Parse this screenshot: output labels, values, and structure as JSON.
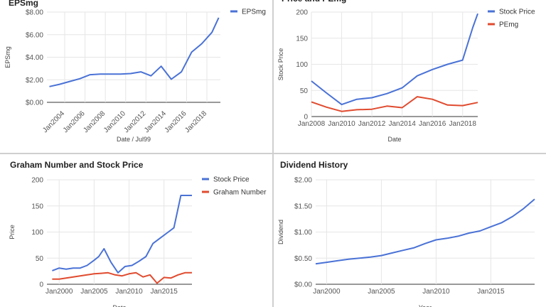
{
  "chart_data": [
    {
      "type": "line",
      "title": "EPSmg",
      "xlabel": "Date / Jul99",
      "ylabel": "EPSmg",
      "x_type": "date",
      "xlim": [
        "2002-04-01",
        "2019-05-01"
      ],
      "ylim": [
        0,
        8
      ],
      "y_ticks": [
        0,
        2,
        4,
        6,
        8
      ],
      "y_tick_labels": [
        "$0.00",
        "$2.00",
        "$4.00",
        "$6.00",
        "$8.00"
      ],
      "x_ticks": [
        "2004-01-01",
        "2006-01-01",
        "2008-01-01",
        "2010-01-01",
        "2012-01-01",
        "2014-01-01",
        "2016-01-01",
        "2018-01-01"
      ],
      "x_tick_labels": [
        "Jan2004",
        "Jan2006",
        "Jan2008",
        "Jan2010",
        "Jan2012",
        "Jan2014",
        "Jan2016",
        "Jan2018"
      ],
      "x_tick_rotate": true,
      "legend_position": "right",
      "series": [
        {
          "name": "EPSmg",
          "color": "#4a72d6",
          "x": [
            "2002-06-30",
            "2003-06-30",
            "2004-06-30",
            "2005-06-30",
            "2006-06-30",
            "2007-06-30",
            "2008-06-30",
            "2009-06-30",
            "2010-06-30",
            "2011-06-30",
            "2012-06-30",
            "2013-06-30",
            "2014-06-30",
            "2015-06-30",
            "2016-06-30",
            "2017-06-30",
            "2018-06-30",
            "2019-02-28"
          ],
          "values": [
            1.4,
            1.6,
            1.85,
            2.1,
            2.45,
            2.5,
            2.5,
            2.5,
            2.55,
            2.7,
            2.35,
            3.2,
            2.05,
            2.7,
            4.45,
            5.2,
            6.2,
            7.5
          ]
        }
      ]
    },
    {
      "type": "line",
      "title": "Price and PEmg",
      "xlabel": "Date",
      "ylabel": "Stock Price",
      "x_type": "date",
      "xlim": [
        "2008-01-01",
        "2019-01-01"
      ],
      "ylim": [
        0,
        200
      ],
      "y_ticks": [
        0,
        50,
        100,
        150,
        200
      ],
      "y_tick_labels": [
        "0",
        "50",
        "100",
        "150",
        "200"
      ],
      "x_ticks": [
        "2008-01-01",
        "2010-01-01",
        "2012-01-01",
        "2014-01-01",
        "2016-01-01",
        "2018-01-01"
      ],
      "x_tick_labels": [
        "Jan2008",
        "Jan2010",
        "Jan2012",
        "Jan2014",
        "Jan2016",
        "Jan2018"
      ],
      "x_tick_rotate": false,
      "legend_position": "right",
      "series": [
        {
          "name": "Stock Price",
          "color": "#4a72d6",
          "x": [
            "2008-01-01",
            "2009-01-01",
            "2010-01-01",
            "2011-01-01",
            "2012-01-01",
            "2013-01-01",
            "2014-01-01",
            "2015-01-01",
            "2016-01-01",
            "2017-01-01",
            "2018-01-01",
            "2018-09-01",
            "2019-01-01"
          ],
          "values": [
            68,
            45,
            23,
            33,
            36,
            44,
            55,
            78,
            90,
            100,
            108,
            170,
            197
          ]
        },
        {
          "name": "PEmg",
          "color": "#e04b2f",
          "x": [
            "2008-01-01",
            "2009-01-01",
            "2010-01-01",
            "2011-01-01",
            "2012-01-01",
            "2013-01-01",
            "2014-01-01",
            "2015-01-01",
            "2016-01-01",
            "2017-01-01",
            "2018-01-01",
            "2019-01-01"
          ],
          "values": [
            28,
            18,
            10,
            13,
            14,
            20,
            17,
            38,
            33,
            22,
            21,
            27
          ]
        }
      ]
    },
    {
      "type": "line",
      "title": "Graham Number and Stock Price",
      "xlabel": "Date",
      "ylabel": "Price",
      "x_type": "date",
      "xlim": [
        "1998-04-01",
        "2019-01-01"
      ],
      "ylim": [
        0,
        200
      ],
      "y_ticks": [
        0,
        50,
        100,
        150,
        200
      ],
      "y_tick_labels": [
        "0",
        "50",
        "100",
        "150",
        "200"
      ],
      "x_ticks": [
        "2000-01-01",
        "2005-01-01",
        "2010-01-01",
        "2015-01-01"
      ],
      "x_tick_labels": [
        "Jan2000",
        "Jan2005",
        "Jan2010",
        "Jan2015"
      ],
      "x_tick_rotate": false,
      "legend_position": "right",
      "series": [
        {
          "name": "Stock Price",
          "color": "#4a72d6",
          "x": [
            "1999-01-01",
            "2000-01-01",
            "2001-01-01",
            "2002-01-01",
            "2003-01-01",
            "2004-01-01",
            "2005-01-01",
            "2005-09-01",
            "2006-06-01",
            "2007-06-01",
            "2008-06-01",
            "2009-06-01",
            "2010-06-01",
            "2011-06-01",
            "2012-06-01",
            "2013-06-01",
            "2014-06-01",
            "2015-06-01",
            "2016-06-01",
            "2017-06-01",
            "2018-01-01",
            "2019-01-01"
          ],
          "values": [
            26,
            31,
            29,
            31,
            31,
            36,
            46,
            53,
            68,
            42,
            22,
            34,
            36,
            44,
            53,
            78,
            88,
            98,
            108,
            170,
            170,
            170
          ]
        },
        {
          "name": "Graham Number",
          "color": "#e04b2f",
          "x": [
            "1999-01-01",
            "2000-01-01",
            "2001-01-01",
            "2002-01-01",
            "2003-01-01",
            "2004-01-01",
            "2005-01-01",
            "2006-01-01",
            "2007-01-01",
            "2008-01-01",
            "2009-01-01",
            "2010-01-01",
            "2011-01-01",
            "2012-01-01",
            "2013-01-01",
            "2014-01-01",
            "2015-01-01",
            "2016-01-01",
            "2017-01-01",
            "2018-01-01",
            "2019-01-01"
          ],
          "values": [
            10,
            10,
            12,
            14,
            16,
            18,
            20,
            21,
            22,
            18,
            16,
            20,
            22,
            14,
            18,
            2,
            13,
            12,
            18,
            22,
            22
          ]
        }
      ]
    },
    {
      "type": "line",
      "title": "Dividend History",
      "xlabel": "Year",
      "ylabel": "Dividend",
      "x_type": "date",
      "xlim": [
        "1999-01-01",
        "2019-01-01"
      ],
      "ylim": [
        0,
        2
      ],
      "y_ticks": [
        0,
        0.5,
        1,
        1.5,
        2
      ],
      "y_tick_labels": [
        "$0.00",
        "$0.50",
        "$1.00",
        "$1.50",
        "$2.00"
      ],
      "x_ticks": [
        "2000-01-01",
        "2005-01-01",
        "2010-01-01",
        "2015-01-01"
      ],
      "x_tick_labels": [
        "Jan2000",
        "Jan2005",
        "Jan2010",
        "Jan2015"
      ],
      "x_tick_rotate": false,
      "legend_position": "none",
      "series": [
        {
          "name": "",
          "color": "#4a72d6",
          "x": [
            "1999-01-01",
            "2000-01-01",
            "2001-01-01",
            "2002-01-01",
            "2003-01-01",
            "2004-01-01",
            "2005-01-01",
            "2006-01-01",
            "2007-01-01",
            "2008-01-01",
            "2009-01-01",
            "2010-01-01",
            "2011-01-01",
            "2012-01-01",
            "2013-01-01",
            "2014-01-01",
            "2015-01-01",
            "2016-01-01",
            "2017-01-01",
            "2018-01-01",
            "2019-01-01"
          ],
          "values": [
            0.39,
            0.42,
            0.45,
            0.48,
            0.5,
            0.52,
            0.55,
            0.6,
            0.65,
            0.7,
            0.78,
            0.85,
            0.88,
            0.92,
            0.98,
            1.02,
            1.1,
            1.18,
            1.3,
            1.45,
            1.63
          ]
        }
      ]
    }
  ]
}
